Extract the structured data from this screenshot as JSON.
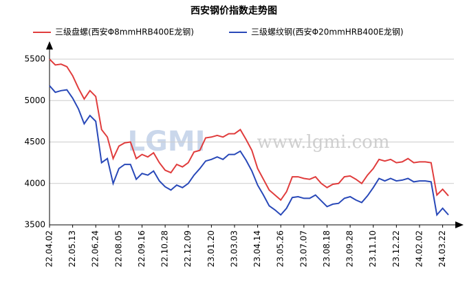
{
  "chart_data": {
    "type": "line",
    "title": "西安钢价指数走势图",
    "watermark": [
      "LGMI",
      "www.lgmi.com"
    ],
    "categories": [
      "22.04.02",
      null,
      null,
      null,
      "22.05.13",
      null,
      null,
      null,
      "22.06.24",
      null,
      null,
      null,
      "22.08.05",
      null,
      null,
      null,
      "22.09.16",
      null,
      null,
      null,
      "22.10.28",
      null,
      null,
      null,
      "22.12.09",
      null,
      null,
      null,
      "23.01.20",
      null,
      null,
      null,
      "23.03.03",
      null,
      null,
      null,
      "23.04.14",
      null,
      null,
      null,
      "23.05.26",
      null,
      null,
      null,
      "23.07.07",
      null,
      null,
      null,
      "23.08.18",
      null,
      null,
      null,
      "23.09.28",
      null,
      null,
      null,
      "23.11.10",
      null,
      null,
      null,
      "23.12.22",
      null,
      null,
      null,
      "24.02.02",
      null,
      null,
      null,
      "24.03.22",
      null
    ],
    "series": [
      {
        "name": "三级盘螺(西安Φ8mmHRB400E龙钢)",
        "color": "#e03c3c",
        "values": [
          5500,
          5430,
          5440,
          5410,
          5300,
          5150,
          5020,
          5120,
          5050,
          4650,
          4560,
          4300,
          4450,
          4490,
          4500,
          4300,
          4350,
          4320,
          4370,
          4250,
          4160,
          4130,
          4230,
          4200,
          4250,
          4380,
          4400,
          4550,
          4560,
          4580,
          4560,
          4600,
          4600,
          4650,
          4530,
          4400,
          4180,
          4050,
          3920,
          3860,
          3800,
          3900,
          4080,
          4080,
          4060,
          4050,
          4080,
          4000,
          3950,
          3990,
          4000,
          4080,
          4090,
          4050,
          4000,
          4100,
          4180,
          4290,
          4270,
          4290,
          4250,
          4260,
          4300,
          4250,
          4260,
          4260,
          4250,
          3860,
          3930,
          3850
        ]
      },
      {
        "name": "三级螺纹钢(西安Φ20mmHRB400E龙钢)",
        "color": "#2848b8",
        "values": [
          5180,
          5100,
          5120,
          5130,
          5030,
          4900,
          4720,
          4820,
          4750,
          4250,
          4300,
          4000,
          4180,
          4230,
          4230,
          4050,
          4120,
          4100,
          4150,
          4030,
          3960,
          3920,
          3980,
          3950,
          4000,
          4100,
          4180,
          4270,
          4290,
          4320,
          4290,
          4350,
          4350,
          4390,
          4280,
          4150,
          3980,
          3860,
          3730,
          3680,
          3620,
          3700,
          3830,
          3840,
          3820,
          3820,
          3860,
          3790,
          3720,
          3750,
          3760,
          3820,
          3840,
          3800,
          3770,
          3850,
          3950,
          4060,
          4030,
          4060,
          4030,
          4040,
          4060,
          4020,
          4030,
          4030,
          4020,
          3620,
          3700,
          3620
        ]
      }
    ],
    "ylim": [
      3500,
      5600
    ],
    "yticks": [
      3500,
      4000,
      4500,
      5000,
      5500
    ],
    "grid": true,
    "legend": "top"
  }
}
